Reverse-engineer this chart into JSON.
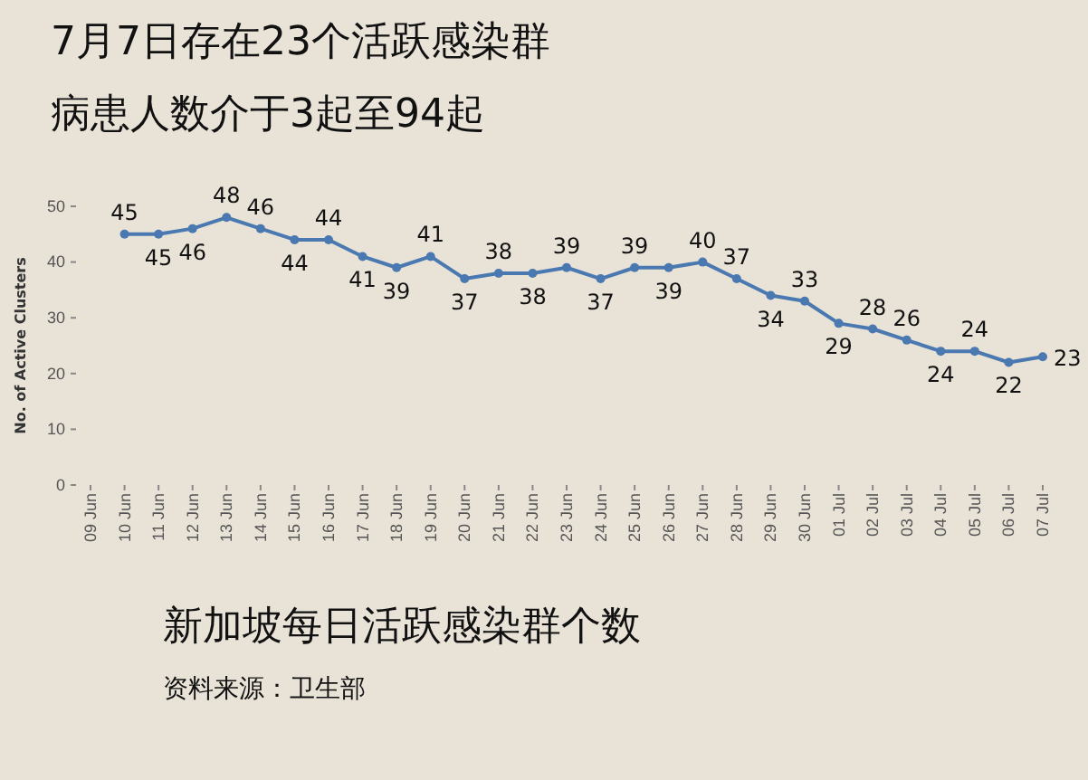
{
  "chart_data": {
    "type": "line",
    "title": "7月7日存在23个活跃感染群",
    "subtitle": "病患人数介于3起至94起",
    "ylabel": "No. of Active Clusters",
    "x": [
      "--06-10",
      "--06-11",
      "--06-12",
      "--06-13",
      "--06-14",
      "--06-15",
      "--06-16",
      "--06-17",
      "--06-18",
      "--06-19",
      "--06-20",
      "--06-21",
      "--06-22",
      "--06-23",
      "--06-24",
      "--06-25",
      "--06-26",
      "--06-27",
      "--06-28",
      "--06-29",
      "--06-30",
      "--07-01",
      "--07-02",
      "--07-03",
      "--07-04",
      "--07-05",
      "--07-06",
      "--07-07"
    ],
    "series": [
      {
        "color": "#4a78b0",
        "values": [
          45,
          45,
          46,
          48,
          46,
          44,
          44,
          41,
          39,
          41,
          37,
          38,
          38,
          39,
          37,
          39,
          39,
          40,
          37,
          34,
          33,
          29,
          28,
          26,
          24,
          24,
          22,
          23
        ]
      }
    ],
    "xlim": [
      "--06-09",
      "--07-07"
    ],
    "xticks": [
      {
        "value": "--06-09",
        "label": "09 Jun"
      },
      {
        "value": "--06-10",
        "label": "10 Jun"
      },
      {
        "value": "--06-11",
        "label": "11 Jun"
      },
      {
        "value": "--06-12",
        "label": "12 Jun"
      },
      {
        "value": "--06-13",
        "label": "13 Jun"
      },
      {
        "value": "--06-14",
        "label": "14 Jun"
      },
      {
        "value": "--06-15",
        "label": "15 Jun"
      },
      {
        "value": "--06-16",
        "label": "16 Jun"
      },
      {
        "value": "--06-17",
        "label": "17 Jun"
      },
      {
        "value": "--06-18",
        "label": "18 Jun"
      },
      {
        "value": "--06-19",
        "label": "19 Jun"
      },
      {
        "value": "--06-20",
        "label": "20 Jun"
      },
      {
        "value": "--06-21",
        "label": "21 Jun"
      },
      {
        "value": "--06-22",
        "label": "22 Jun"
      },
      {
        "value": "--06-23",
        "label": "23 Jun"
      },
      {
        "value": "--06-24",
        "label": "24 Jun"
      },
      {
        "value": "--06-25",
        "label": "25 Jun"
      },
      {
        "value": "--06-26",
        "label": "26 Jun"
      },
      {
        "value": "--06-27",
        "label": "27 Jun"
      },
      {
        "value": "--06-28",
        "label": "28 Jun"
      },
      {
        "value": "--06-29",
        "label": "29 Jun"
      },
      {
        "value": "--06-30",
        "label": "30 Jun"
      },
      {
        "value": "--07-01",
        "label": "01 Jul"
      },
      {
        "value": "--07-02",
        "label": "02 Jul"
      },
      {
        "value": "--07-03",
        "label": "03 Jul"
      },
      {
        "value": "--07-04",
        "label": "04 Jul"
      },
      {
        "value": "--07-05",
        "label": "05 Jul"
      },
      {
        "value": "--07-06",
        "label": "06 Jul"
      },
      {
        "value": "--07-07",
        "label": "07 Jul"
      }
    ],
    "ylim": [
      0,
      50
    ],
    "yticks": [
      0,
      10,
      20,
      30,
      40,
      50
    ],
    "marker": "circle",
    "data_labels": true,
    "grid": false,
    "annotations": [
      "新加坡每日活跃感染群个数",
      "资料来源：卫生部"
    ]
  }
}
